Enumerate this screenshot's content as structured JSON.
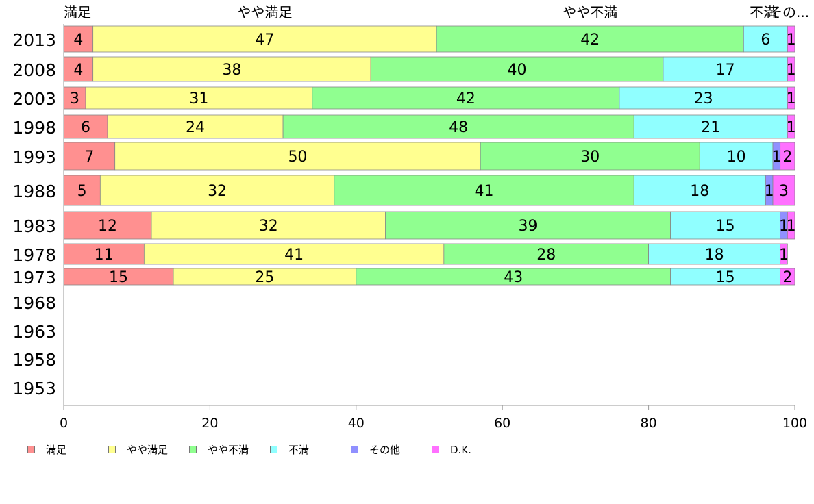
{
  "chart_data": {
    "type": "bar",
    "orientation": "horizontal",
    "stacked": true,
    "categories": [
      "2013",
      "2008",
      "2003",
      "1998",
      "1993",
      "1988",
      "1983",
      "1978",
      "1973",
      "1968",
      "1963",
      "1958",
      "1953"
    ],
    "series": [
      {
        "name": "満足",
        "color": "#ff9090",
        "values": [
          4,
          4,
          3,
          6,
          7,
          5,
          12,
          11,
          15,
          null,
          null,
          null,
          null
        ]
      },
      {
        "name": "やや満足",
        "color": "#ffff90",
        "values": [
          47,
          38,
          31,
          24,
          50,
          32,
          32,
          41,
          25,
          null,
          null,
          null,
          null
        ]
      },
      {
        "name": "やや不満",
        "color": "#90ff90",
        "values": [
          42,
          40,
          42,
          48,
          30,
          41,
          39,
          28,
          43,
          null,
          null,
          null,
          null
        ]
      },
      {
        "name": "不満",
        "color": "#90ffff",
        "values": [
          6,
          17,
          23,
          21,
          10,
          18,
          15,
          18,
          15,
          null,
          null,
          null,
          null
        ]
      },
      {
        "name": "その他",
        "color": "#9090ff",
        "values": [
          0,
          0,
          0,
          0,
          1,
          1,
          1,
          0,
          0,
          null,
          null,
          null,
          null
        ]
      },
      {
        "name": "D.K.",
        "color": "#ff70ff",
        "values": [
          1,
          1,
          1,
          1,
          2,
          3,
          1,
          1,
          2,
          null,
          null,
          null,
          null
        ]
      }
    ],
    "top_labels": [
      "満足",
      "やや満足",
      "やや不満",
      "不満",
      "その..."
    ],
    "xlim": [
      0,
      100
    ],
    "xticks": [
      0,
      20,
      40,
      60,
      80,
      100
    ],
    "legend_position": "bottom",
    "grid": false
  }
}
